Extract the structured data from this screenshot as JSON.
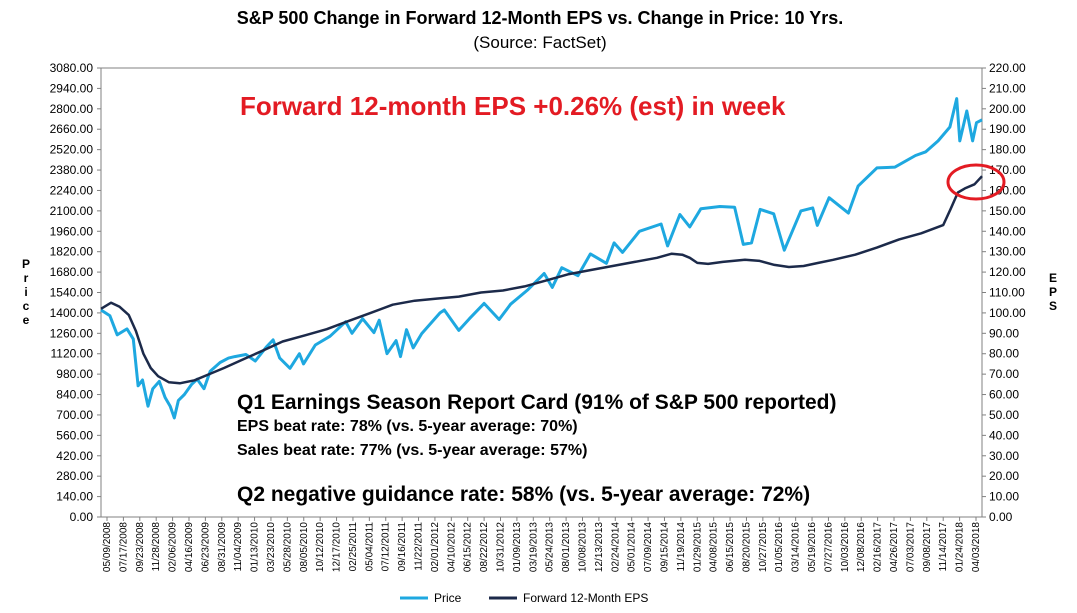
{
  "chart_data": {
    "type": "line",
    "title": "S&P 500 Change in Forward 12-Month EPS vs. Change in Price: 10 Yrs.",
    "subtitle": "(Source: FactSet)",
    "ylabel": "Price",
    "y2label": "EPS",
    "ylim": [
      0,
      3080
    ],
    "y2lim": [
      0,
      220
    ],
    "y_ticks": [
      "0.00",
      "140.00",
      "280.00",
      "420.00",
      "560.00",
      "700.00",
      "840.00",
      "980.00",
      "1120.00",
      "1260.00",
      "1400.00",
      "1540.00",
      "1680.00",
      "1820.00",
      "1960.00",
      "2100.00",
      "2240.00",
      "2380.00",
      "2520.00",
      "2660.00",
      "2800.00",
      "2940.00",
      "3080.00"
    ],
    "y2_ticks": [
      "0.00",
      "10.00",
      "20.00",
      "30.00",
      "40.00",
      "50.00",
      "60.00",
      "70.00",
      "80.00",
      "90.00",
      "100.00",
      "110.00",
      "120.00",
      "130.00",
      "140.00",
      "150.00",
      "160.00",
      "170.00",
      "180.00",
      "190.00",
      "200.00",
      "210.00",
      "220.00"
    ],
    "x_ticks": [
      "05/09/2008",
      "07/17/2008",
      "09/23/2008",
      "11/28/2008",
      "02/06/2009",
      "04/16/2009",
      "06/23/2009",
      "08/31/2009",
      "11/04/2009",
      "01/13/2010",
      "03/23/2010",
      "05/28/2010",
      "08/05/2010",
      "10/12/2010",
      "12/17/2010",
      "02/25/2011",
      "05/04/2011",
      "07/12/2011",
      "09/16/2011",
      "11/22/2011",
      "02/01/2012",
      "04/10/2012",
      "06/15/2012",
      "08/22/2012",
      "10/31/2012",
      "01/09/2013",
      "03/19/2013",
      "05/24/2013",
      "08/01/2013",
      "10/08/2013",
      "12/13/2013",
      "02/24/2014",
      "05/01/2014",
      "07/09/2014",
      "09/15/2014",
      "11/19/2014",
      "01/29/2015",
      "04/08/2015",
      "06/15/2015",
      "08/20/2015",
      "10/27/2015",
      "01/05/2016",
      "03/14/2016",
      "05/19/2016",
      "07/27/2016",
      "10/03/2016",
      "12/08/2016",
      "02/16/2017",
      "04/26/2017",
      "07/03/2017",
      "09/08/2017",
      "11/14/2017",
      "01/24/2018",
      "04/03/2018"
    ],
    "x_start": "2008-05-09",
    "x_end": "2018-05-11",
    "series": [
      {
        "name": "Price",
        "axis": "left",
        "color": "#1ea8e0",
        "points": [
          [
            "2008-05-09",
            1420
          ],
          [
            "2008-06-15",
            1380
          ],
          [
            "2008-07-15",
            1250
          ],
          [
            "2008-08-25",
            1290
          ],
          [
            "2008-09-20",
            1220
          ],
          [
            "2008-10-10",
            900
          ],
          [
            "2008-10-28",
            940
          ],
          [
            "2008-11-20",
            760
          ],
          [
            "2008-12-10",
            880
          ],
          [
            "2009-01-06",
            930
          ],
          [
            "2009-01-30",
            820
          ],
          [
            "2009-02-20",
            760
          ],
          [
            "2009-03-09",
            680
          ],
          [
            "2009-03-26",
            800
          ],
          [
            "2009-04-20",
            840
          ],
          [
            "2009-05-20",
            910
          ],
          [
            "2009-06-12",
            945
          ],
          [
            "2009-07-10",
            880
          ],
          [
            "2009-08-05",
            1000
          ],
          [
            "2009-09-15",
            1060
          ],
          [
            "2009-10-20",
            1090
          ],
          [
            "2009-11-15",
            1100
          ],
          [
            "2009-12-31",
            1115
          ],
          [
            "2010-02-08",
            1070
          ],
          [
            "2010-03-25",
            1165
          ],
          [
            "2010-04-23",
            1215
          ],
          [
            "2010-05-20",
            1090
          ],
          [
            "2010-07-02",
            1020
          ],
          [
            "2010-08-10",
            1120
          ],
          [
            "2010-08-27",
            1050
          ],
          [
            "2010-10-15",
            1180
          ],
          [
            "2010-12-15",
            1240
          ],
          [
            "2011-02-18",
            1340
          ],
          [
            "2011-03-16",
            1260
          ],
          [
            "2011-04-29",
            1360
          ],
          [
            "2011-06-15",
            1265
          ],
          [
            "2011-07-07",
            1350
          ],
          [
            "2011-08-08",
            1120
          ],
          [
            "2011-09-15",
            1210
          ],
          [
            "2011-10-03",
            1100
          ],
          [
            "2011-10-28",
            1285
          ],
          [
            "2011-11-25",
            1160
          ],
          [
            "2011-12-30",
            1258
          ],
          [
            "2012-03-15",
            1400
          ],
          [
            "2012-04-02",
            1420
          ],
          [
            "2012-06-01",
            1280
          ],
          [
            "2012-07-15",
            1360
          ],
          [
            "2012-09-14",
            1465
          ],
          [
            "2012-11-15",
            1355
          ],
          [
            "2013-01-02",
            1460
          ],
          [
            "2013-03-15",
            1560
          ],
          [
            "2013-05-21",
            1670
          ],
          [
            "2013-06-24",
            1575
          ],
          [
            "2013-08-02",
            1710
          ],
          [
            "2013-10-08",
            1655
          ],
          [
            "2013-11-29",
            1805
          ],
          [
            "2014-02-03",
            1740
          ],
          [
            "2014-03-07",
            1880
          ],
          [
            "2014-04-11",
            1815
          ],
          [
            "2014-06-20",
            1960
          ],
          [
            "2014-09-18",
            2010
          ],
          [
            "2014-10-15",
            1860
          ],
          [
            "2014-12-05",
            2075
          ],
          [
            "2015-01-15",
            1990
          ],
          [
            "2015-03-02",
            2115
          ],
          [
            "2015-05-20",
            2130
          ],
          [
            "2015-07-20",
            2125
          ],
          [
            "2015-08-25",
            1870
          ],
          [
            "2015-09-28",
            1880
          ],
          [
            "2015-11-03",
            2110
          ],
          [
            "2015-12-29",
            2080
          ],
          [
            "2016-02-11",
            1830
          ],
          [
            "2016-04-20",
            2100
          ],
          [
            "2016-06-08",
            2120
          ],
          [
            "2016-06-27",
            2000
          ],
          [
            "2016-08-15",
            2190
          ],
          [
            "2016-11-03",
            2085
          ],
          [
            "2016-12-13",
            2270
          ],
          [
            "2017-03-01",
            2395
          ],
          [
            "2017-05-15",
            2400
          ],
          [
            "2017-08-08",
            2480
          ],
          [
            "2017-09-20",
            2505
          ],
          [
            "2017-11-10",
            2580
          ],
          [
            "2017-12-29",
            2675
          ],
          [
            "2018-01-26",
            2870
          ],
          [
            "2018-02-08",
            2580
          ],
          [
            "2018-03-09",
            2785
          ],
          [
            "2018-04-02",
            2580
          ],
          [
            "2018-04-18",
            2705
          ],
          [
            "2018-05-11",
            2725
          ]
        ]
      },
      {
        "name": "Forward 12-Month EPS",
        "axis": "right",
        "color": "#1c2a4a",
        "points": [
          [
            "2008-05-09",
            102
          ],
          [
            "2008-06-20",
            105
          ],
          [
            "2008-07-25",
            103
          ],
          [
            "2008-09-01",
            99
          ],
          [
            "2008-10-01",
            91
          ],
          [
            "2008-11-01",
            80
          ],
          [
            "2008-12-01",
            73
          ],
          [
            "2009-01-01",
            69
          ],
          [
            "2009-02-15",
            66
          ],
          [
            "2009-04-01",
            65.5
          ],
          [
            "2009-06-01",
            67
          ],
          [
            "2009-08-01",
            70
          ],
          [
            "2009-10-01",
            73
          ],
          [
            "2009-12-15",
            77
          ],
          [
            "2010-03-01",
            81
          ],
          [
            "2010-06-01",
            86
          ],
          [
            "2010-09-01",
            89
          ],
          [
            "2010-12-01",
            92
          ],
          [
            "2011-03-01",
            96
          ],
          [
            "2011-06-01",
            100
          ],
          [
            "2011-09-01",
            104
          ],
          [
            "2011-12-01",
            106
          ],
          [
            "2012-03-01",
            107
          ],
          [
            "2012-06-01",
            108
          ],
          [
            "2012-09-01",
            110
          ],
          [
            "2012-12-01",
            111
          ],
          [
            "2013-03-01",
            113
          ],
          [
            "2013-06-01",
            116
          ],
          [
            "2013-09-01",
            119
          ],
          [
            "2013-12-01",
            121
          ],
          [
            "2014-03-01",
            123
          ],
          [
            "2014-06-01",
            125
          ],
          [
            "2014-09-01",
            127
          ],
          [
            "2014-11-01",
            129
          ],
          [
            "2014-12-15",
            128.5
          ],
          [
            "2015-01-15",
            127
          ],
          [
            "2015-02-15",
            124.5
          ],
          [
            "2015-04-01",
            124
          ],
          [
            "2015-06-01",
            125
          ],
          [
            "2015-09-01",
            126
          ],
          [
            "2015-11-01",
            125.5
          ],
          [
            "2016-01-01",
            123.5
          ],
          [
            "2016-03-01",
            122.5
          ],
          [
            "2016-05-01",
            123
          ],
          [
            "2016-07-01",
            124.5
          ],
          [
            "2016-09-01",
            126
          ],
          [
            "2016-12-01",
            128.5
          ],
          [
            "2017-03-01",
            132
          ],
          [
            "2017-06-01",
            136
          ],
          [
            "2017-09-01",
            139
          ],
          [
            "2017-12-01",
            143
          ],
          [
            "2018-01-01",
            151
          ],
          [
            "2018-01-31",
            159
          ],
          [
            "2018-03-01",
            161
          ],
          [
            "2018-04-10",
            163
          ],
          [
            "2018-05-11",
            167
          ]
        ]
      }
    ],
    "annotations": {
      "highlight": "Forward 12-month EPS +0.26% (est) in week",
      "report_card_title": "Q1 Earnings Season Report Card (91% of S&P 500 reported)",
      "eps_beat": "EPS beat rate: 78% (vs. 5-year average: 70%)",
      "sales_beat": "Sales beat rate: 77% (vs. 5-year average: 57%)",
      "guidance": "Q2 negative guidance rate: 58% (vs. 5-year average: 72%)",
      "highlight_color": "#e31b23"
    },
    "grid": false,
    "legend_position": "bottom"
  }
}
